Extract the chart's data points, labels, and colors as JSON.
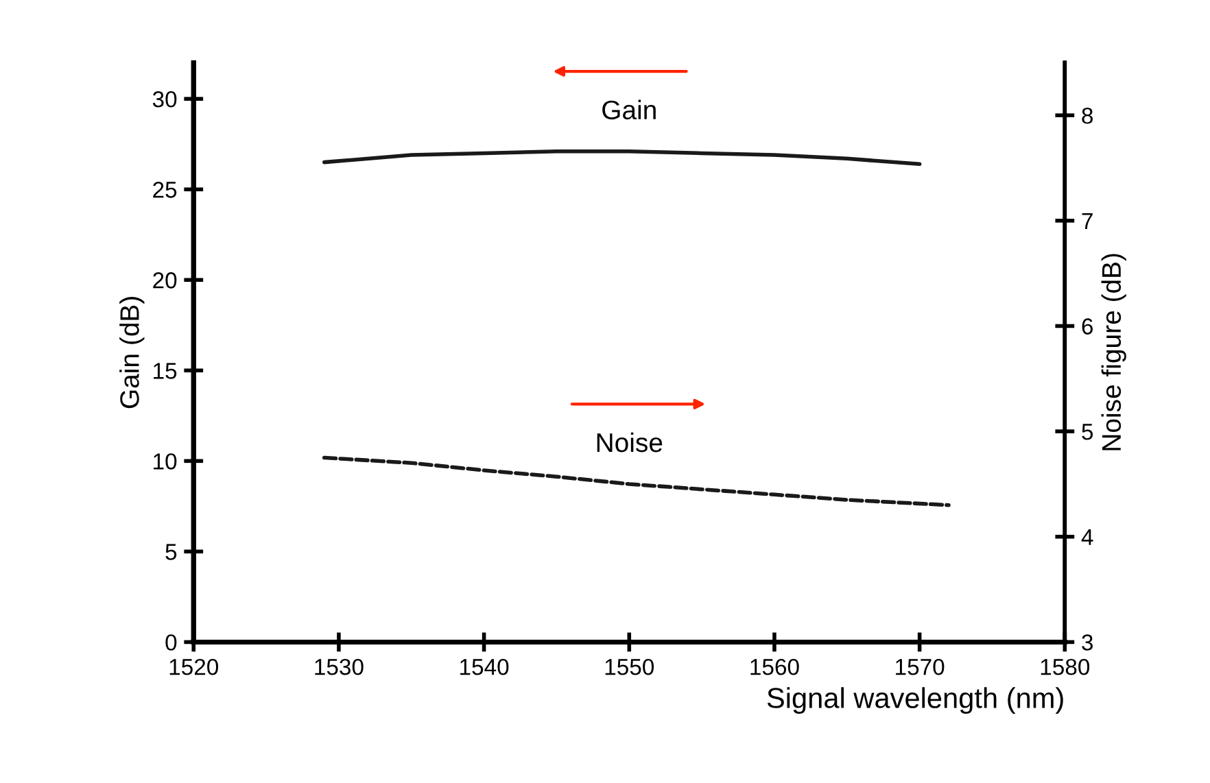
{
  "chart_data": {
    "type": "line",
    "xlabel": "Signal wavelength (nm)",
    "ylabel": "Gain (dB)",
    "y2label": "Noise figure (dB)",
    "series": [
      {
        "name": "Gain",
        "color": "#1a1a1a",
        "line_style": "solid",
        "x": [
          1529,
          1535,
          1540,
          1545,
          1550,
          1555,
          1560,
          1565,
          1570
        ],
        "values": [
          26.5,
          26.9,
          27.0,
          27.1,
          27.1,
          27.0,
          26.9,
          26.7,
          26.4
        ]
      },
      {
        "name": "Noise",
        "color": "#1a1a1a",
        "line_style": "dashed",
        "axis": "y2",
        "x": [
          1529,
          1535,
          1540,
          1545,
          1550,
          1555,
          1560,
          1565,
          1572
        ],
        "values": [
          4.75,
          4.7,
          4.63,
          4.57,
          4.5,
          4.45,
          4.4,
          4.35,
          4.3
        ]
      }
    ],
    "xlim": [
      1520,
      1580
    ],
    "xticks": [
      1520,
      1530,
      1540,
      1550,
      1560,
      1570,
      1580
    ],
    "ylim": [
      0,
      32
    ],
    "yticks": [
      0,
      5,
      10,
      15,
      20,
      25,
      30
    ],
    "y2lim": [
      3,
      8.5
    ],
    "y2ticks": [
      3,
      4,
      5,
      6,
      7,
      8
    ],
    "grid": false,
    "legend": false,
    "marker": "none"
  }
}
